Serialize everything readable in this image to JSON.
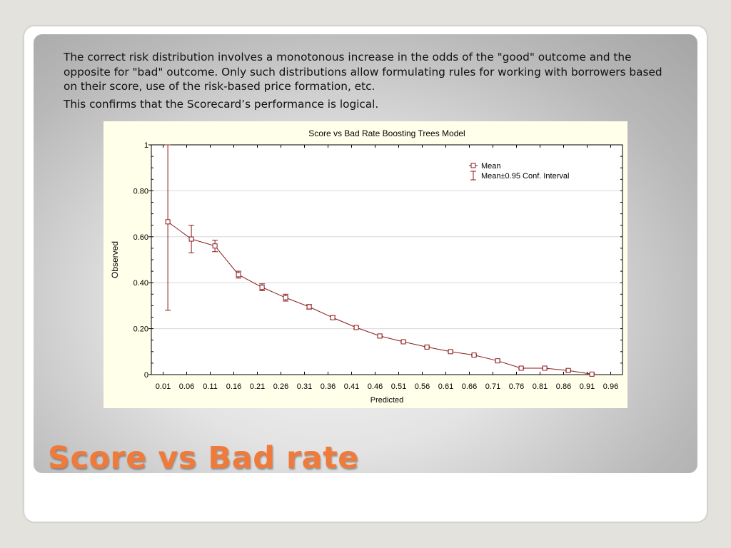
{
  "slide": {
    "body_paragraph_1": "The correct risk distribution involves a monotonous increase in the odds of the \"good\" outcome and the opposite for \"bad\" outcome. Only such distributions allow formulating rules for working with borrowers based on their score, use of the risk-based price formation, etc.",
    "body_paragraph_2": "This confirms that the Scorecard’s performance is logical.",
    "title": "Score vs Bad rate",
    "title_color": "#ef7a3a"
  },
  "chart_data": {
    "type": "line",
    "title": "Score vs Bad Rate Boosting Trees Model",
    "xlabel": "Predicted",
    "ylabel": "Observed",
    "x_tick_labels": [
      "0.01",
      "0.06",
      "0.11",
      "0.16",
      "0.21",
      "0.26",
      "0.31",
      "0.36",
      "0.41",
      "0.46",
      "0.51",
      "0.56",
      "0.61",
      "0.66",
      "0.71",
      "0.76",
      "0.81",
      "0.86",
      "0.91",
      "0.96"
    ],
    "y_ticks": [
      0,
      0.2,
      0.4,
      0.6,
      0.8,
      1
    ],
    "y_tick_labels": [
      "0",
      "0.20",
      "0.40",
      "0.60",
      "0.80",
      "1"
    ],
    "ylim": [
      0,
      1
    ],
    "xlim": [
      0,
      1
    ],
    "grid": "horizontal",
    "legend_position": "top-right",
    "legend": [
      "Mean",
      "Mean±0.95 Conf. Interval"
    ],
    "line_color": "#8b1a1a",
    "background_color": "#ffffea",
    "series": [
      {
        "x": [
          0.035,
          0.085,
          0.135,
          0.185,
          0.235,
          0.285,
          0.335,
          0.385,
          0.435,
          0.485,
          0.535,
          0.585,
          0.635,
          0.685,
          0.735,
          0.785,
          0.835,
          0.885,
          0.935
        ],
        "mean": [
          0.665,
          0.59,
          0.56,
          0.435,
          0.38,
          0.335,
          0.295,
          0.248,
          0.205,
          0.168,
          0.143,
          0.12,
          0.1,
          0.085,
          0.06,
          0.028,
          0.028,
          0.018,
          0.002
        ],
        "lower": [
          0.28,
          0.53,
          0.535,
          0.42,
          0.365,
          0.32,
          0.285,
          0.24,
          0.2,
          0.163,
          0.139,
          0.116,
          0.097,
          0.081,
          0.056,
          0.025,
          0.025,
          0.015,
          0.0
        ],
        "upper": [
          1.0,
          0.65,
          0.585,
          0.45,
          0.395,
          0.35,
          0.305,
          0.256,
          0.21,
          0.173,
          0.147,
          0.124,
          0.103,
          0.089,
          0.064,
          0.031,
          0.031,
          0.021,
          0.004
        ]
      }
    ]
  }
}
